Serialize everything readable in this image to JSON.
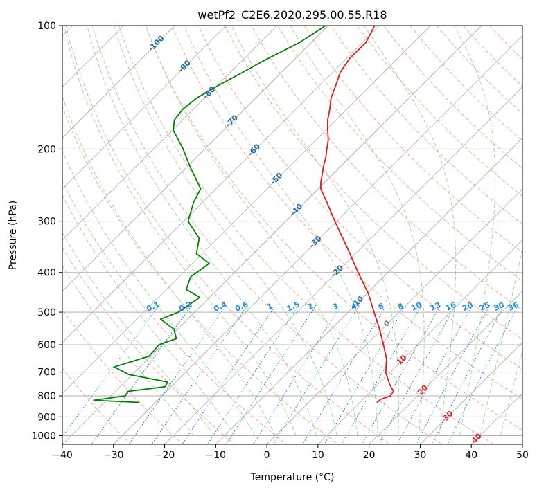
{
  "chart_data": {
    "type": "line",
    "subtype": "skew-T log-P diagram",
    "title": "wetPf2_C2E6.2020.295.00.55.R18",
    "xlabel": "Temperature (°C)",
    "ylabel": "Pressure (hPa)",
    "xlim": [
      -40,
      50
    ],
    "ylim": [
      1050,
      100
    ],
    "y_scale": "log",
    "grid": true,
    "x_ticks": [
      -40,
      -30,
      -20,
      -10,
      0,
      10,
      20,
      30,
      40,
      50
    ],
    "x_tick_labels": [
      "−40",
      "−30",
      "−20",
      "−10",
      "0",
      "10",
      "20",
      "30",
      "40",
      "50"
    ],
    "y_ticks": [
      100,
      200,
      300,
      400,
      500,
      600,
      700,
      800,
      900,
      1000
    ],
    "y_tick_labels": [
      "100",
      "200",
      "300",
      "400",
      "500",
      "600",
      "700",
      "800",
      "900",
      "1000"
    ],
    "series": [
      {
        "role": "temperature",
        "color": "#e31a1c",
        "points": [
          {
            "p": 100,
            "t": -60.9
          },
          {
            "p": 110,
            "t": -59.3
          },
          {
            "p": 120,
            "t": -59.4
          },
          {
            "p": 130,
            "t": -58.5
          },
          {
            "p": 140,
            "t": -56.8
          },
          {
            "p": 150,
            "t": -55.3
          },
          {
            "p": 160,
            "t": -53.3
          },
          {
            "p": 170,
            "t": -51.6
          },
          {
            "p": 180,
            "t": -49.6
          },
          {
            "p": 190,
            "t": -47.6
          },
          {
            "p": 200,
            "t": -46.1
          },
          {
            "p": 210,
            "t": -44.6
          },
          {
            "p": 220,
            "t": -43.4
          },
          {
            "p": 230,
            "t": -42.1
          },
          {
            "p": 240,
            "t": -40.9
          },
          {
            "p": 250,
            "t": -39.5
          },
          {
            "p": 270,
            "t": -35.6
          },
          {
            "p": 300,
            "t": -30.4
          },
          {
            "p": 350,
            "t": -22.5
          },
          {
            "p": 400,
            "t": -15.8
          },
          {
            "p": 450,
            "t": -9.7
          },
          {
            "p": 500,
            "t": -4.9
          },
          {
            "p": 550,
            "t": -0.5
          },
          {
            "p": 600,
            "t": 3.3
          },
          {
            "p": 650,
            "t": 6.7
          },
          {
            "p": 700,
            "t": 9.1
          },
          {
            "p": 750,
            "t": 12.3
          },
          {
            "p": 780,
            "t": 14.4
          },
          {
            "p": 800,
            "t": 14.7
          },
          {
            "p": 815,
            "t": 13.5
          },
          {
            "p": 830,
            "t": 13.3
          }
        ]
      },
      {
        "role": "dewpoint",
        "color": "#008000",
        "points": [
          {
            "p": 100,
            "t": -70.5
          },
          {
            "p": 110,
            "t": -72.3
          },
          {
            "p": 120,
            "t": -75.3
          },
          {
            "p": 130,
            "t": -77.6
          },
          {
            "p": 140,
            "t": -79.8
          },
          {
            "p": 150,
            "t": -81.5
          },
          {
            "p": 160,
            "t": -82.1
          },
          {
            "p": 170,
            "t": -81.6
          },
          {
            "p": 180,
            "t": -79.8
          },
          {
            "p": 200,
            "t": -74.2
          },
          {
            "p": 220,
            "t": -69.6
          },
          {
            "p": 240,
            "t": -65.1
          },
          {
            "p": 250,
            "t": -63.0
          },
          {
            "p": 270,
            "t": -61.7
          },
          {
            "p": 300,
            "t": -59.1
          },
          {
            "p": 330,
            "t": -53.6
          },
          {
            "p": 360,
            "t": -51.1
          },
          {
            "p": 380,
            "t": -46.7
          },
          {
            "p": 410,
            "t": -47.7
          },
          {
            "p": 440,
            "t": -46.1
          },
          {
            "p": 460,
            "t": -41.9
          },
          {
            "p": 500,
            "t": -43.2
          },
          {
            "p": 520,
            "t": -45.3
          },
          {
            "p": 550,
            "t": -40.7
          },
          {
            "p": 580,
            "t": -38.4
          },
          {
            "p": 600,
            "t": -40.6
          },
          {
            "p": 640,
            "t": -40.3
          },
          {
            "p": 680,
            "t": -45.0
          },
          {
            "p": 710,
            "t": -40.6
          },
          {
            "p": 740,
            "t": -31.6
          },
          {
            "p": 760,
            "t": -31.2
          },
          {
            "p": 780,
            "t": -37.5
          },
          {
            "p": 800,
            "t": -37.2
          },
          {
            "p": 820,
            "t": -42.5
          },
          {
            "p": 830,
            "t": -33.1
          }
        ]
      }
    ],
    "isotherm_labels": [
      {
        "t": -100,
        "text": "-100"
      },
      {
        "t": -90,
        "text": "-90"
      },
      {
        "t": -80,
        "text": "-80"
      },
      {
        "t": -70,
        "text": "-70"
      },
      {
        "t": -60,
        "text": "-60"
      },
      {
        "t": -50,
        "text": "-50"
      },
      {
        "t": -40,
        "text": "-40"
      },
      {
        "t": -30,
        "text": "-30"
      },
      {
        "t": -20,
        "text": "-20"
      },
      {
        "t": -10,
        "text": "-10"
      },
      {
        "t": 0,
        "text": "0"
      },
      {
        "t": 10,
        "text": "10"
      },
      {
        "t": 20,
        "text": "20"
      },
      {
        "t": 30,
        "text": "30"
      },
      {
        "t": 40,
        "text": "40"
      }
    ],
    "mixing_ratio_labels": [
      "0.1",
      "0.2",
      "0.4",
      "0.6",
      "1",
      "1.5",
      "2",
      "3",
      "4",
      "6",
      "8",
      "10",
      "13",
      "16",
      "20",
      "25",
      "30",
      "36"
    ],
    "colors": {
      "temperature": "#e31a1c",
      "dewpoint": "#008000",
      "isotherm_cold": "#2b6ea6",
      "isotherm_zero": "#808080",
      "isotherm_warm": "#d62728",
      "mixing_ratio": "#1f8ee6",
      "dry_adiabat": "#f7a98a",
      "moist_adiabat": "#a6d6a6",
      "grid": "#b0b0b0"
    }
  }
}
